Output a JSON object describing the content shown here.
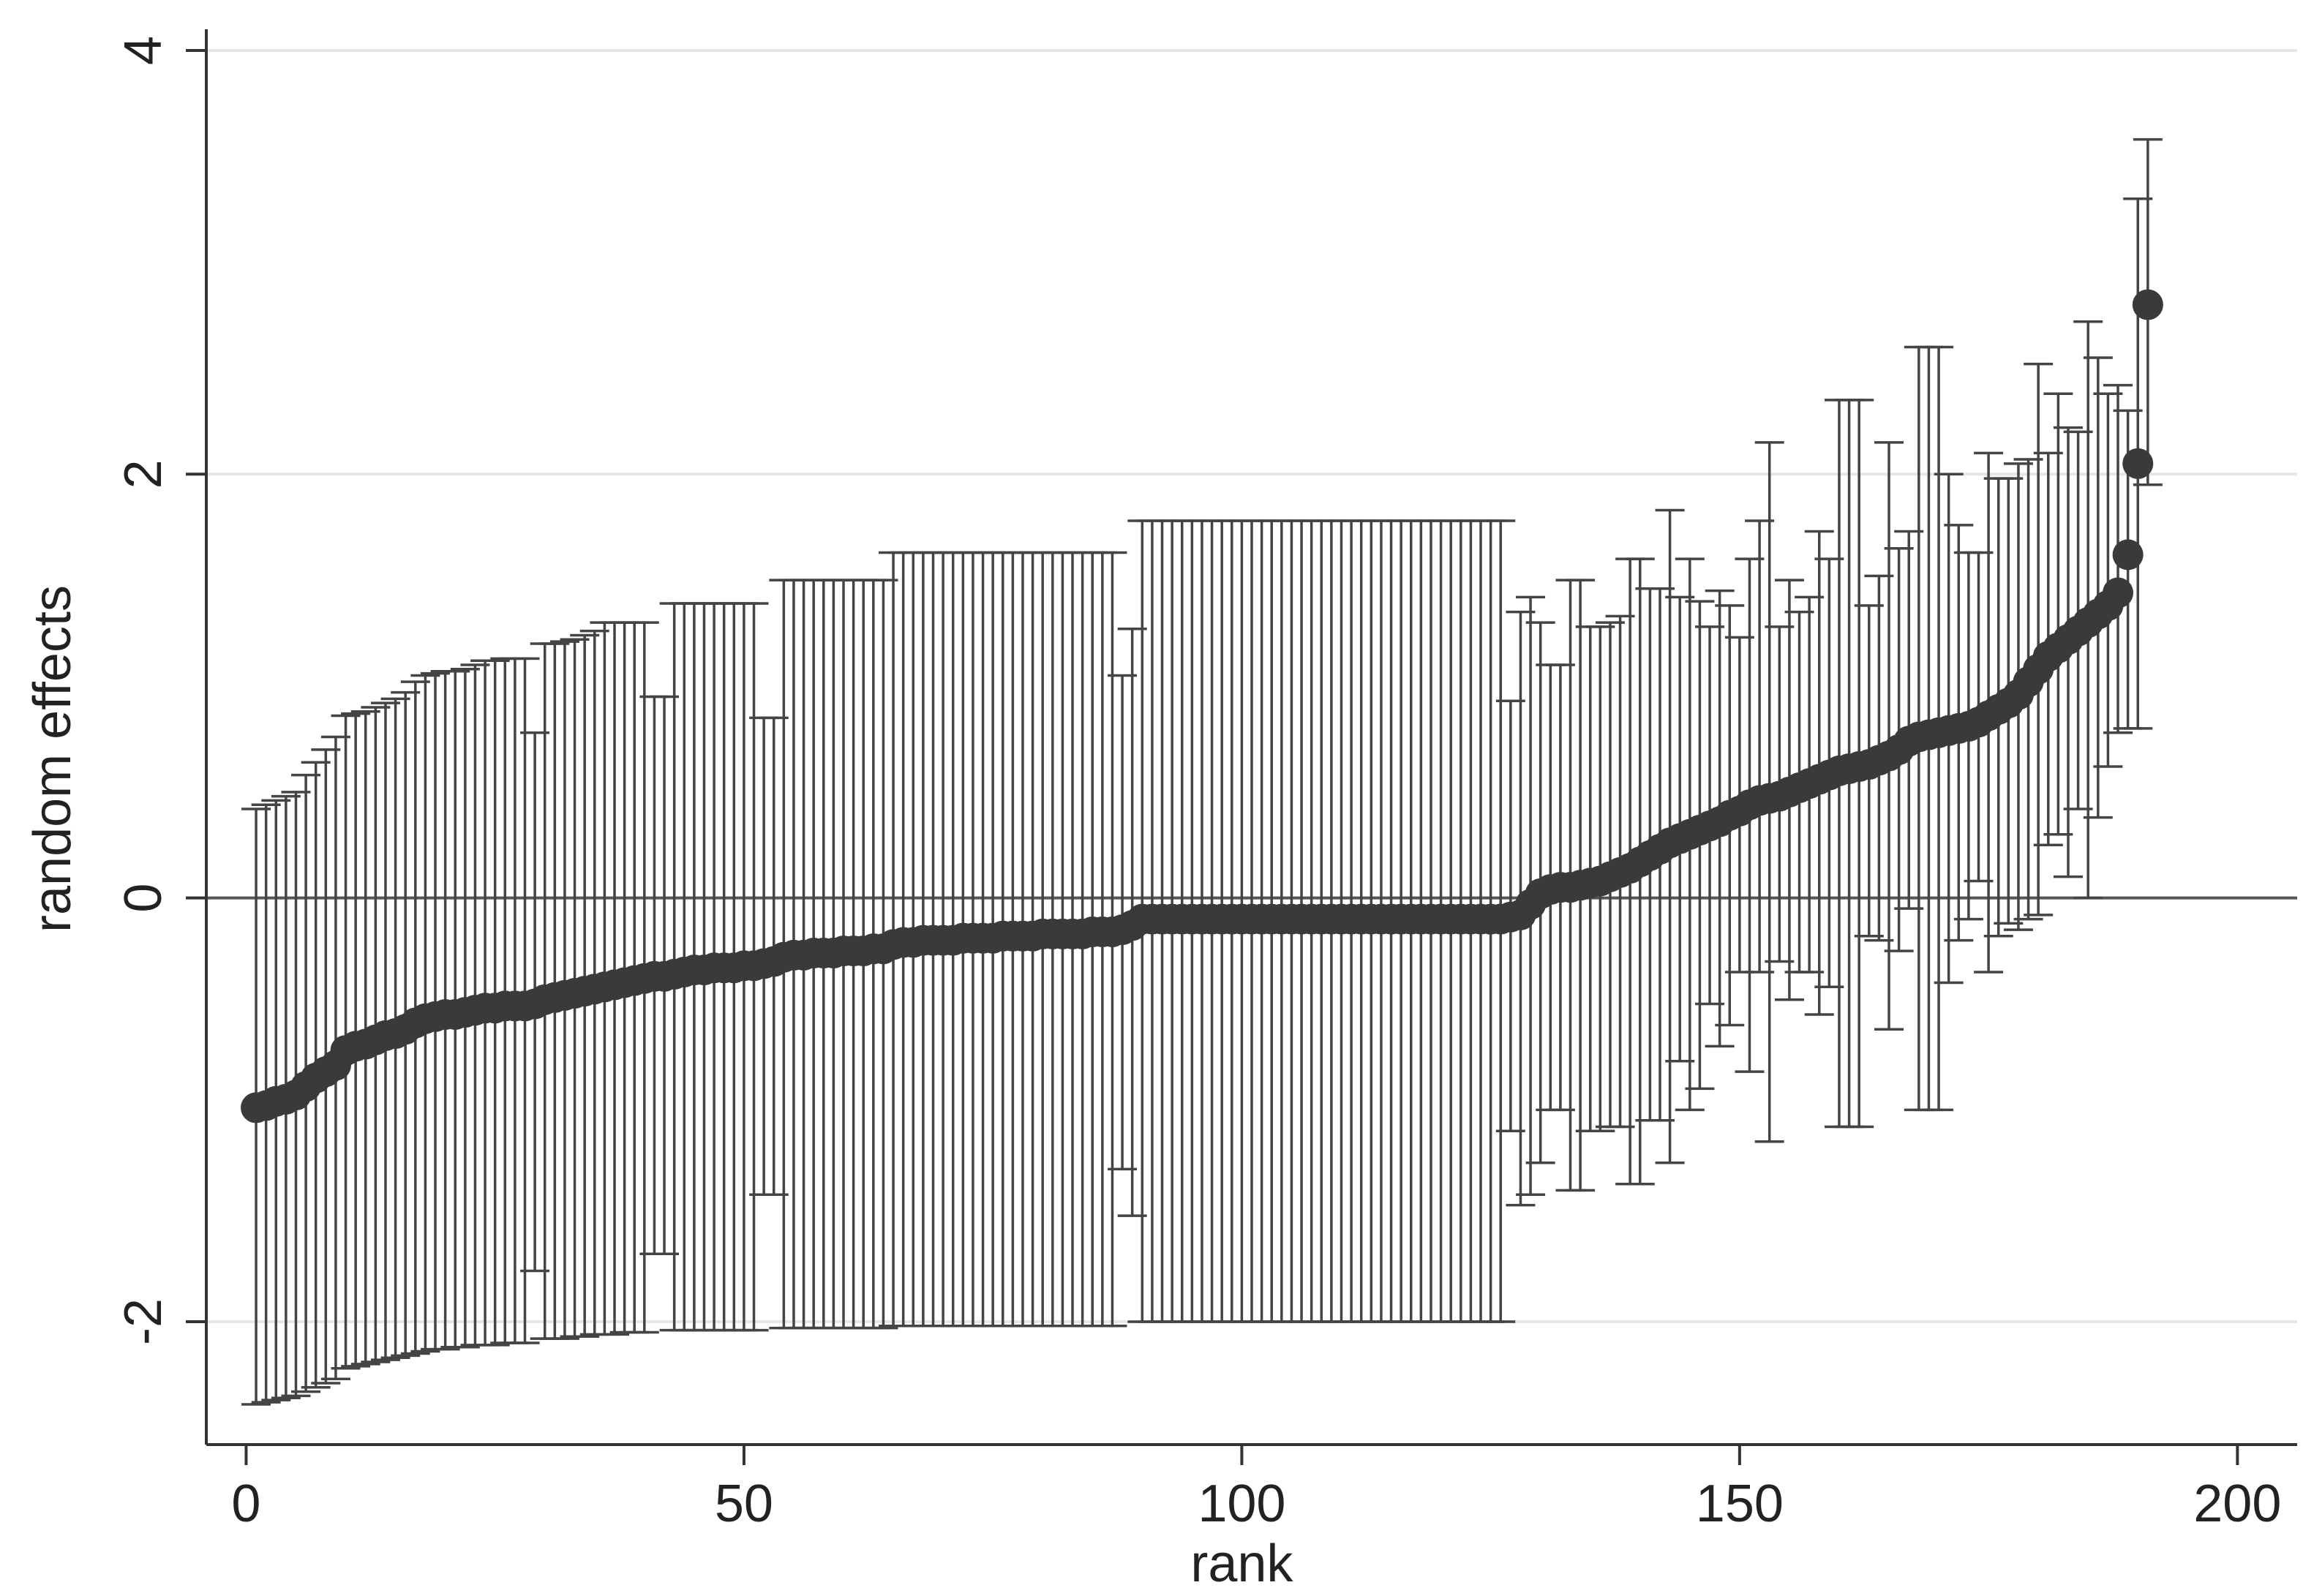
{
  "chart_data": {
    "type": "scatter",
    "title": "",
    "xlabel": "rank",
    "ylabel": "random effects",
    "xlim": [
      -4,
      206
    ],
    "ylim": [
      -2.58,
      4.1
    ],
    "x_ticks": [
      0,
      50,
      100,
      150,
      200
    ],
    "y_ticks": [
      -2,
      0,
      2,
      4
    ],
    "x_tick_labels": [
      "0",
      "50",
      "100",
      "150",
      "200"
    ],
    "y_tick_labels": [
      "-2",
      "0",
      "2",
      "4"
    ],
    "grid": true,
    "reference_line_y": 0,
    "legend": "none",
    "colors": {
      "points": "#3a3a3a",
      "error_bars": "#444444",
      "axes": "#333333",
      "gridlines": "#e6e6e6",
      "reference_line": "#555555"
    },
    "series": [
      {
        "x_start": 1,
        "points": [
          [
            -0.99,
            -2.39,
            0.42
          ],
          [
            -0.98,
            -2.38,
            0.44
          ],
          [
            -0.96,
            -2.37,
            0.46
          ],
          [
            -0.95,
            -2.36,
            0.48
          ],
          [
            -0.93,
            -2.35,
            0.5
          ],
          [
            -0.89,
            -2.33,
            0.58
          ],
          [
            -0.85,
            -2.31,
            0.64
          ],
          [
            -0.82,
            -2.29,
            0.7
          ],
          [
            -0.79,
            -2.27,
            0.76
          ],
          [
            -0.72,
            -2.22,
            0.86
          ],
          [
            -0.7,
            -2.21,
            0.87
          ],
          [
            -0.69,
            -2.2,
            0.88
          ],
          [
            -0.67,
            -2.19,
            0.9
          ],
          [
            -0.65,
            -2.18,
            0.92
          ],
          [
            -0.64,
            -2.17,
            0.94
          ],
          [
            -0.62,
            -2.16,
            0.97
          ],
          [
            -0.59,
            -2.15,
            1.02
          ],
          [
            -0.57,
            -2.14,
            1.05
          ],
          [
            -0.56,
            -2.13,
            1.06
          ],
          [
            -0.55,
            -2.13,
            1.07
          ],
          [
            -0.55,
            -2.12,
            1.07
          ],
          [
            -0.54,
            -2.12,
            1.08
          ],
          [
            -0.53,
            -2.11,
            1.1
          ],
          [
            -0.52,
            -2.11,
            1.12
          ],
          [
            -0.52,
            -2.11,
            1.12
          ],
          [
            -0.51,
            -2.1,
            1.13
          ],
          [
            -0.51,
            -2.1,
            1.13
          ],
          [
            -0.51,
            -2.1,
            1.13
          ],
          [
            -0.5,
            -1.76,
            0.78
          ],
          [
            -0.48,
            -2.08,
            1.2
          ],
          [
            -0.47,
            -2.08,
            1.2
          ],
          [
            -0.46,
            -2.08,
            1.21
          ],
          [
            -0.45,
            -2.07,
            1.22
          ],
          [
            -0.44,
            -2.07,
            1.24
          ],
          [
            -0.43,
            -2.06,
            1.26
          ],
          [
            -0.42,
            -2.06,
            1.3
          ],
          [
            -0.41,
            -2.06,
            1.3
          ],
          [
            -0.4,
            -2.05,
            1.3
          ],
          [
            -0.39,
            -2.05,
            1.3
          ],
          [
            -0.38,
            -2.05,
            1.3
          ],
          [
            -0.37,
            -1.68,
            0.95
          ],
          [
            -0.37,
            -1.68,
            0.95
          ],
          [
            -0.36,
            -2.04,
            1.39
          ],
          [
            -0.35,
            -2.04,
            1.39
          ],
          [
            -0.34,
            -2.04,
            1.39
          ],
          [
            -0.34,
            -2.04,
            1.39
          ],
          [
            -0.33,
            -2.04,
            1.39
          ],
          [
            -0.33,
            -2.04,
            1.39
          ],
          [
            -0.33,
            -2.04,
            1.39
          ],
          [
            -0.32,
            -2.04,
            1.39
          ],
          [
            -0.32,
            -2.04,
            1.39
          ],
          [
            -0.31,
            -1.4,
            0.85
          ],
          [
            -0.3,
            -1.4,
            0.85
          ],
          [
            -0.28,
            -2.03,
            1.5
          ],
          [
            -0.27,
            -2.03,
            1.5
          ],
          [
            -0.27,
            -2.03,
            1.5
          ],
          [
            -0.26,
            -2.03,
            1.5
          ],
          [
            -0.26,
            -2.03,
            1.5
          ],
          [
            -0.26,
            -2.03,
            1.5
          ],
          [
            -0.25,
            -2.03,
            1.5
          ],
          [
            -0.25,
            -2.03,
            1.5
          ],
          [
            -0.25,
            -2.03,
            1.5
          ],
          [
            -0.24,
            -2.03,
            1.5
          ],
          [
            -0.24,
            -2.03,
            1.5
          ],
          [
            -0.22,
            -2.02,
            1.63
          ],
          [
            -0.21,
            -2.02,
            1.63
          ],
          [
            -0.21,
            -2.02,
            1.63
          ],
          [
            -0.2,
            -2.02,
            1.63
          ],
          [
            -0.2,
            -2.02,
            1.63
          ],
          [
            -0.2,
            -2.02,
            1.63
          ],
          [
            -0.2,
            -2.02,
            1.63
          ],
          [
            -0.19,
            -2.02,
            1.63
          ],
          [
            -0.19,
            -2.02,
            1.63
          ],
          [
            -0.19,
            -2.02,
            1.63
          ],
          [
            -0.19,
            -2.02,
            1.63
          ],
          [
            -0.18,
            -2.02,
            1.63
          ],
          [
            -0.18,
            -2.02,
            1.63
          ],
          [
            -0.18,
            -2.02,
            1.63
          ],
          [
            -0.18,
            -2.02,
            1.63
          ],
          [
            -0.17,
            -2.02,
            1.63
          ],
          [
            -0.17,
            -2.02,
            1.63
          ],
          [
            -0.17,
            -2.02,
            1.63
          ],
          [
            -0.17,
            -2.02,
            1.63
          ],
          [
            -0.17,
            -2.02,
            1.63
          ],
          [
            -0.16,
            -2.02,
            1.63
          ],
          [
            -0.16,
            -2.02,
            1.63
          ],
          [
            -0.16,
            -2.02,
            1.63
          ],
          [
            -0.15,
            -1.28,
            1.05
          ],
          [
            -0.13,
            -1.5,
            1.27
          ],
          [
            -0.1,
            -2,
            1.78
          ],
          [
            -0.1,
            -2,
            1.78
          ],
          [
            -0.1,
            -2,
            1.78
          ],
          [
            -0.1,
            -2,
            1.78
          ],
          [
            -0.1,
            -2,
            1.78
          ],
          [
            -0.1,
            -2,
            1.78
          ],
          [
            -0.1,
            -2,
            1.78
          ],
          [
            -0.1,
            -2,
            1.78
          ],
          [
            -0.1,
            -2,
            1.78
          ],
          [
            -0.1,
            -2,
            1.78
          ],
          [
            -0.1,
            -2,
            1.78
          ],
          [
            -0.1,
            -2,
            1.78
          ],
          [
            -0.1,
            -2,
            1.78
          ],
          [
            -0.1,
            -2,
            1.78
          ],
          [
            -0.1,
            -2,
            1.78
          ],
          [
            -0.1,
            -2,
            1.78
          ],
          [
            -0.1,
            -2,
            1.78
          ],
          [
            -0.1,
            -2,
            1.78
          ],
          [
            -0.1,
            -2,
            1.78
          ],
          [
            -0.1,
            -2,
            1.78
          ],
          [
            -0.1,
            -2,
            1.78
          ],
          [
            -0.1,
            -2,
            1.78
          ],
          [
            -0.1,
            -2,
            1.78
          ],
          [
            -0.1,
            -2,
            1.78
          ],
          [
            -0.1,
            -2,
            1.78
          ],
          [
            -0.1,
            -2,
            1.78
          ],
          [
            -0.1,
            -2,
            1.78
          ],
          [
            -0.1,
            -2,
            1.78
          ],
          [
            -0.1,
            -2,
            1.78
          ],
          [
            -0.1,
            -2,
            1.78
          ],
          [
            -0.1,
            -2,
            1.78
          ],
          [
            -0.1,
            -2,
            1.78
          ],
          [
            -0.1,
            -2,
            1.78
          ],
          [
            -0.1,
            -2,
            1.78
          ],
          [
            -0.1,
            -2,
            1.78
          ],
          [
            -0.1,
            -2,
            1.78
          ],
          [
            -0.1,
            -2,
            1.78
          ],
          [
            -0.09,
            -1.1,
            0.93
          ],
          [
            -0.08,
            -1.45,
            1.35
          ],
          [
            -0.03,
            -1.4,
            1.42
          ],
          [
            0.02,
            -1.25,
            1.3
          ],
          [
            0.04,
            -1.0,
            1.1
          ],
          [
            0.05,
            -1.0,
            1.1
          ],
          [
            0.05,
            -1.38,
            1.5
          ],
          [
            0.06,
            -1.38,
            1.5
          ],
          [
            0.07,
            -1.1,
            1.28
          ],
          [
            0.08,
            -1.1,
            1.28
          ],
          [
            0.1,
            -1.08,
            1.3
          ],
          [
            0.12,
            -1.08,
            1.33
          ],
          [
            0.14,
            -1.35,
            1.6
          ],
          [
            0.17,
            -1.35,
            1.6
          ],
          [
            0.2,
            -1.05,
            1.46
          ],
          [
            0.23,
            -1.05,
            1.46
          ],
          [
            0.26,
            -1.25,
            1.83
          ],
          [
            0.28,
            -0.77,
            1.42
          ],
          [
            0.3,
            -1.0,
            1.6
          ],
          [
            0.32,
            -0.9,
            1.4
          ],
          [
            0.34,
            -0.5,
            1.28
          ],
          [
            0.36,
            -0.7,
            1.45
          ],
          [
            0.39,
            -0.6,
            1.38
          ],
          [
            0.41,
            -0.35,
            1.23
          ],
          [
            0.44,
            -0.82,
            1.6
          ],
          [
            0.46,
            -0.35,
            1.78
          ],
          [
            0.47,
            -1.15,
            2.15
          ],
          [
            0.48,
            -0.3,
            1.28
          ],
          [
            0.5,
            -0.48,
            1.5
          ],
          [
            0.52,
            -0.35,
            1.35
          ],
          [
            0.54,
            -0.35,
            1.42
          ],
          [
            0.56,
            -0.55,
            1.73
          ],
          [
            0.58,
            -0.42,
            1.6
          ],
          [
            0.6,
            -1.08,
            2.35
          ],
          [
            0.61,
            -1.08,
            2.35
          ],
          [
            0.62,
            -1.08,
            2.35
          ],
          [
            0.63,
            -0.18,
            1.38
          ],
          [
            0.65,
            -0.2,
            1.52
          ],
          [
            0.67,
            -0.62,
            2.15
          ],
          [
            0.7,
            -0.25,
            1.65
          ],
          [
            0.74,
            -0.05,
            1.73
          ],
          [
            0.76,
            -1.0,
            2.6
          ],
          [
            0.77,
            -1.0,
            2.6
          ],
          [
            0.78,
            -1.0,
            2.6
          ],
          [
            0.79,
            -0.4,
            2.0
          ],
          [
            0.8,
            -0.2,
            1.76
          ],
          [
            0.81,
            -0.1,
            1.63
          ],
          [
            0.83,
            0.08,
            1.63
          ],
          [
            0.86,
            -0.35,
            2.1
          ],
          [
            0.89,
            -0.18,
            1.98
          ],
          [
            0.92,
            -0.12,
            1.98
          ],
          [
            0.96,
            -0.15,
            2.05
          ],
          [
            1.02,
            -0.1,
            2.07
          ],
          [
            1.08,
            -0.08,
            2.52
          ],
          [
            1.14,
            0.25,
            2.1
          ],
          [
            1.18,
            0.3,
            2.38
          ],
          [
            1.22,
            0.1,
            2.22
          ],
          [
            1.26,
            0.42,
            2.2
          ],
          [
            1.3,
            0.0,
            2.72
          ],
          [
            1.34,
            0.38,
            2.55
          ],
          [
            1.38,
            0.62,
            2.38
          ],
          [
            1.44,
            0.78,
            2.42
          ],
          [
            1.62,
            0.8,
            2.3
          ],
          [
            2.05,
            0.8,
            3.3
          ],
          [
            2.8,
            1.95,
            3.58
          ]
        ]
      }
    ]
  }
}
